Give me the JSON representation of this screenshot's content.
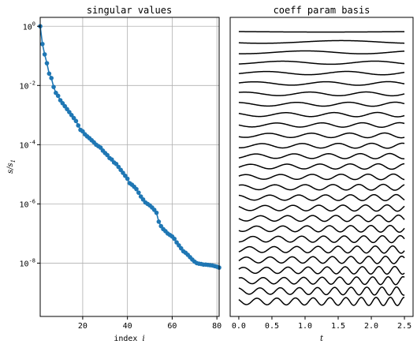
{
  "chart_data": [
    {
      "type": "scatter",
      "title": "singular values",
      "xlabel": "index",
      "xlabel_var": "i",
      "ylabel": "s/s",
      "ylabel_sub": "1",
      "yscale": "log",
      "xlim": [
        1,
        81
      ],
      "ylim_exp": [
        -9.8,
        0.3
      ],
      "grid": true,
      "color": "#1f77b4",
      "xticks": [
        20,
        40,
        60,
        80
      ],
      "yticks": [
        {
          "base": "10",
          "exp": "0"
        },
        {
          "base": "10",
          "exp": "-2"
        },
        {
          "base": "10",
          "exp": "-4"
        },
        {
          "base": "10",
          "exp": "-6"
        },
        {
          "base": "10",
          "exp": "-8"
        }
      ],
      "ytick_exp_values": [
        0,
        -2,
        -4,
        -6,
        -8
      ],
      "series": [
        {
          "x": [
            1,
            2,
            3,
            4,
            5,
            6,
            7,
            8,
            9,
            10,
            11,
            12,
            13,
            14,
            15,
            16,
            17,
            18,
            19,
            20,
            21,
            22,
            23,
            24,
            25,
            26,
            27,
            28,
            29,
            30,
            31,
            32,
            33,
            34,
            35,
            36,
            37,
            38,
            39,
            40,
            41,
            42,
            43,
            44,
            45,
            46,
            47,
            48,
            49,
            50,
            51,
            52,
            53,
            54,
            55,
            56,
            57,
            58,
            59,
            60,
            61,
            62,
            63,
            64,
            65,
            66,
            67,
            68,
            69,
            70,
            71,
            72,
            73,
            74,
            75,
            76,
            77,
            78,
            79,
            80,
            81
          ],
          "log10_y": [
            0,
            -0.6,
            -0.95,
            -1.25,
            -1.6,
            -1.75,
            -2.05,
            -2.25,
            -2.35,
            -2.5,
            -2.6,
            -2.7,
            -2.8,
            -2.9,
            -3.0,
            -3.1,
            -3.2,
            -3.35,
            -3.5,
            -3.55,
            -3.65,
            -3.72,
            -3.78,
            -3.85,
            -3.92,
            -4.0,
            -4.05,
            -4.1,
            -4.2,
            -4.28,
            -4.35,
            -4.45,
            -4.5,
            -4.6,
            -4.65,
            -4.75,
            -4.85,
            -4.95,
            -5.05,
            -5.15,
            -5.3,
            -5.35,
            -5.42,
            -5.5,
            -5.62,
            -5.75,
            -5.85,
            -5.95,
            -6.0,
            -6.05,
            -6.12,
            -6.2,
            -6.3,
            -6.6,
            -6.75,
            -6.85,
            -6.92,
            -7.0,
            -7.05,
            -7.1,
            -7.18,
            -7.3,
            -7.4,
            -7.5,
            -7.6,
            -7.65,
            -7.72,
            -7.8,
            -7.88,
            -7.95,
            -8.0,
            -8.02,
            -8.03,
            -8.05,
            -8.05,
            -8.06,
            -8.07,
            -8.08,
            -8.1,
            -8.12,
            -8.15
          ]
        }
      ]
    },
    {
      "type": "line",
      "title": "coeff param basis",
      "xlabel": "t",
      "xlim": [
        -0.13,
        2.63
      ],
      "xticks": [
        "0.0",
        "0.5",
        "1.0",
        "1.5",
        "2.0",
        "2.5"
      ],
      "xtick_values": [
        0,
        0.5,
        1.0,
        1.5,
        2.0,
        2.5
      ],
      "t_range": [
        0,
        2.5
      ],
      "color": "#000000",
      "num_curves": 27
    }
  ]
}
